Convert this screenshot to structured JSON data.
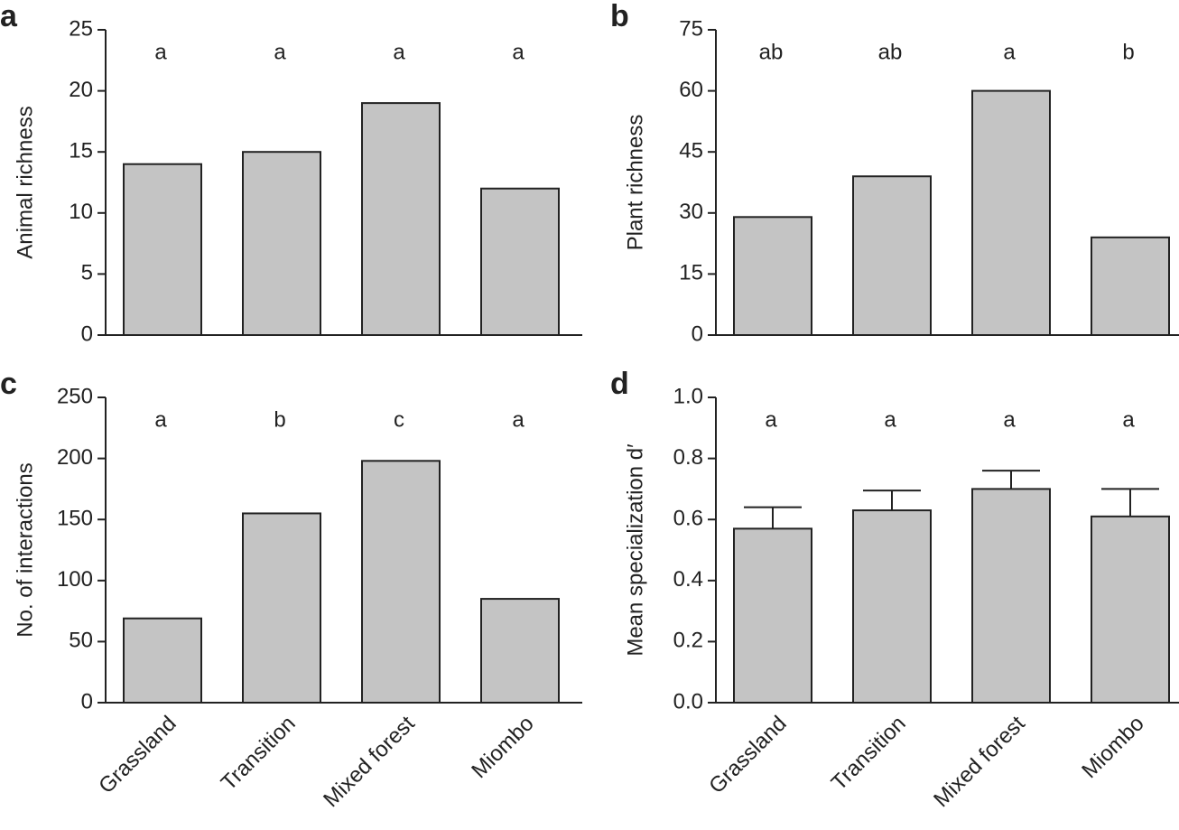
{
  "chart_data": [
    {
      "type": "bar",
      "panel_label": "a",
      "ylabel": "Animal richness",
      "categories": [
        null,
        null,
        null,
        null
      ],
      "values": [
        14,
        15,
        19,
        12
      ],
      "color": "#c4c4c4",
      "letters": [
        "a",
        "a",
        "a",
        "a"
      ],
      "ylim": [
        0,
        25
      ],
      "yticks": [
        0,
        5,
        10,
        15,
        20,
        25
      ]
    },
    {
      "type": "bar",
      "panel_label": "b",
      "ylabel": "Plant richness",
      "categories": [
        null,
        null,
        null,
        null
      ],
      "values": [
        29,
        39,
        60,
        24
      ],
      "color": "#c4c4c4",
      "letters": [
        "ab",
        "ab",
        "a",
        "b"
      ],
      "ylim": [
        0,
        75
      ],
      "yticks": [
        0,
        15,
        30,
        45,
        60,
        75
      ]
    },
    {
      "type": "bar",
      "panel_label": "c",
      "ylabel": "No. of interactions",
      "categories": [
        "Grassland",
        "Transition",
        "Mixed forest",
        "Miombo"
      ],
      "values": [
        69,
        155,
        198,
        85
      ],
      "color": "#c4c4c4",
      "letters": [
        "a",
        "b",
        "c",
        "a"
      ],
      "ylim": [
        0,
        250
      ],
      "yticks": [
        0,
        50,
        100,
        150,
        200,
        250
      ]
    },
    {
      "type": "bar",
      "panel_label": "d",
      "ylabel": "Mean specialization d′",
      "categories": [
        "Grassland",
        "Transition",
        "Mixed forest",
        "Miombo"
      ],
      "values": [
        0.57,
        0.63,
        0.7,
        0.61
      ],
      "errors": [
        0.07,
        0.065,
        0.06,
        0.09
      ],
      "color": "#c4c4c4",
      "letters": [
        "a",
        "a",
        "a",
        "a"
      ],
      "ylim": [
        0,
        1
      ],
      "yticks": [
        {
          "value": 0,
          "label": "0.0"
        },
        0.2,
        0.4,
        0.6,
        0.8,
        {
          "value": 1,
          "label": "1.0"
        }
      ]
    }
  ]
}
